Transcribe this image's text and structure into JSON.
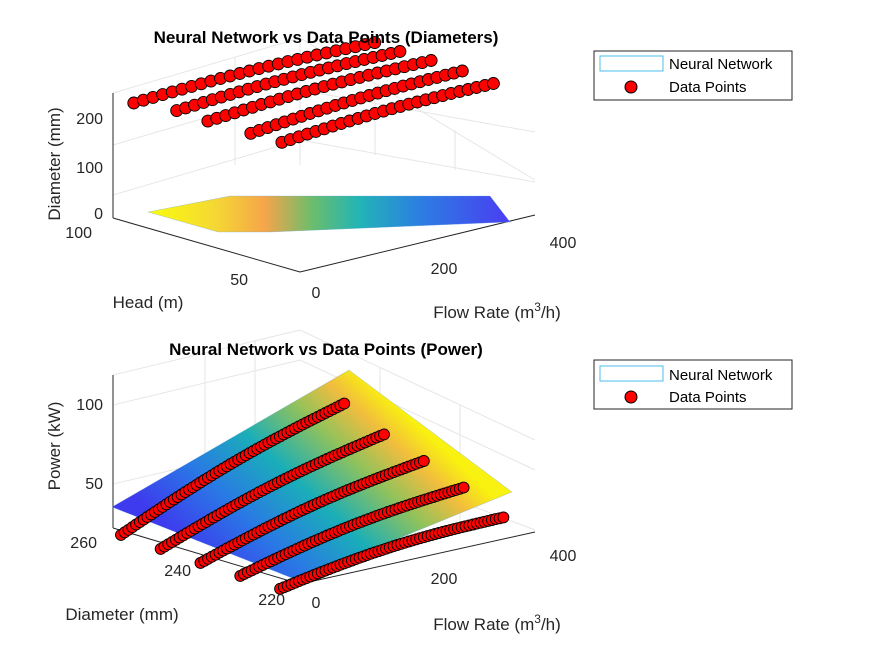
{
  "colors": {
    "marker_fill": "#ff0000",
    "marker_edge": "#000000",
    "legend_surface_edge": "#4dbeee",
    "axis_line": "#262626",
    "grid": "#e6e6e6",
    "surface_colormap": "parula"
  },
  "legend": {
    "surface_label": "Neural Network",
    "points_label": "Data Points"
  },
  "plot1": {
    "title": "Neural Network vs Data Points (Diameters)",
    "zlabel": "Diameter (mm)",
    "ylabel": "Head (m)",
    "xlabel_prefix": "Flow Rate (m",
    "xlabel_sup": "3",
    "xlabel_suffix": "/h)",
    "zticks": [
      "0",
      "100",
      "200"
    ],
    "yticks": [
      "100",
      "50"
    ],
    "xticks": [
      "0",
      "200",
      "400"
    ]
  },
  "plot2": {
    "title": "Neural Network vs Data Points (Power)",
    "zlabel": "Power (kW)",
    "ylabel": "Diameter (mm)",
    "xlabel_prefix": "Flow Rate (m",
    "xlabel_sup": "3",
    "xlabel_suffix": "/h)",
    "zticks": [
      "100",
      "50"
    ],
    "yticks": [
      "260",
      "240",
      "220"
    ],
    "xticks": [
      "0",
      "200",
      "400"
    ]
  },
  "chart_data": [
    {
      "type": "surface3d",
      "title": "Neural Network vs Data Points (Diameters)",
      "xlabel": "Flow Rate (m3/h)",
      "ylabel": "Head (m)",
      "zlabel": "Diameter (mm)",
      "xlim": [
        0,
        400
      ],
      "ylim": [
        20,
        110
      ],
      "zlim": [
        0,
        250
      ],
      "grid": true,
      "legend": {
        "placement": "outside-top-right",
        "entries": [
          "Neural Network",
          "Data Points"
        ]
      },
      "surface": {
        "name": "Neural Network",
        "z_range": [
          0,
          10
        ],
        "colormap": "parula"
      },
      "points": {
        "name": "Data Points",
        "curves": [
          {
            "x_range": [
              0,
              410
            ],
            "y": 100,
            "z_start": 218,
            "z_end": 222
          },
          {
            "x_range": [
              20,
              400
            ],
            "y": 85,
            "z_start": 215,
            "z_end": 225
          },
          {
            "x_range": [
              20,
              400
            ],
            "y": 70,
            "z_start": 212,
            "z_end": 225
          },
          {
            "x_range": [
              40,
              400
            ],
            "y": 55,
            "z_start": 200,
            "z_end": 222
          },
          {
            "x_range": [
              40,
              400
            ],
            "y": 40,
            "z_start": 200,
            "z_end": 215
          }
        ]
      }
    },
    {
      "type": "surface3d",
      "title": "Neural Network vs Data Points (Power)",
      "xlabel": "Flow Rate (m3/h)",
      "ylabel": "Diameter (mm)",
      "zlabel": "Power (kW)",
      "xlim": [
        0,
        400
      ],
      "ylim": [
        215,
        262
      ],
      "zlim": [
        30,
        120
      ],
      "grid": true,
      "legend": {
        "placement": "outside-top-right",
        "entries": [
          "Neural Network",
          "Data Points"
        ]
      },
      "surface": {
        "name": "Neural Network",
        "colormap": "parula"
      },
      "points": {
        "name": "Data Points",
        "curves": [
          {
            "y": 260,
            "x_range": [
              0,
              380
            ],
            "z_start": 40,
            "z_end": 118
          },
          {
            "y": 250,
            "x_range": [
              0,
              380
            ],
            "z_start": 38,
            "z_end": 100
          },
          {
            "y": 240,
            "x_range": [
              0,
              380
            ],
            "z_start": 36,
            "z_end": 86
          },
          {
            "y": 230,
            "x_range": [
              0,
              380
            ],
            "z_start": 35,
            "z_end": 72
          },
          {
            "y": 220,
            "x_range": [
              0,
              380
            ],
            "z_start": 34,
            "z_end": 55
          }
        ]
      }
    }
  ]
}
